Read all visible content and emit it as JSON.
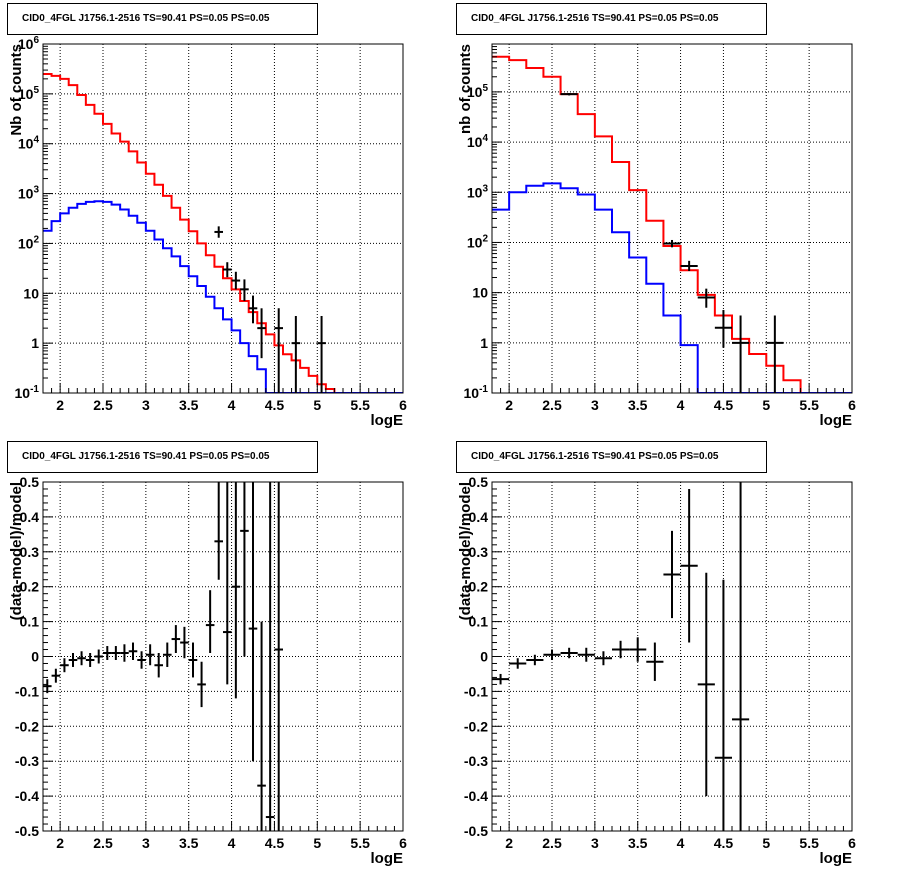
{
  "chart_data": [
    {
      "type": "histogram",
      "title": "CID0_4FGL J1756.1-2516 TS=90.41 PS=0.05 PS=0.05",
      "xlabel": "logE",
      "ylabel": "Nb of counts",
      "xlim": [
        1.8,
        6.0
      ],
      "ylim": [
        0.1,
        1000000
      ],
      "ylog": true,
      "grid": true,
      "xticks": [
        "2",
        "2.5",
        "3",
        "3.5",
        "4",
        "4.5",
        "5",
        "5.5",
        "6"
      ],
      "yticks": [
        "10^-1",
        "1",
        "10",
        "10^2",
        "10^3",
        "10^4",
        "10^5",
        "10^6"
      ],
      "bin_edges": [
        1.8,
        1.9,
        2.0,
        2.1,
        2.2,
        2.3,
        2.4,
        2.5,
        2.6,
        2.7,
        2.8,
        2.9,
        3.0,
        3.1,
        3.2,
        3.3,
        3.4,
        3.5,
        3.6,
        3.7,
        3.8,
        3.9,
        4.0,
        4.1,
        4.2,
        4.3,
        4.4,
        4.5,
        4.6,
        4.7,
        4.8,
        4.9,
        5.0,
        5.1,
        5.2,
        5.3,
        5.4,
        5.5,
        5.6,
        5.7,
        5.8,
        5.9,
        6.0
      ],
      "series": [
        {
          "color": "#ff0000",
          "values": [
            250000,
            230000,
            200000,
            150000,
            95000,
            60000,
            40000,
            25000,
            16000,
            11000,
            7000,
            4200,
            2500,
            1500,
            900,
            520,
            300,
            175,
            100,
            58,
            34,
            20,
            12,
            7,
            4.2,
            2.5,
            1.5,
            0.9,
            0.6,
            0.45,
            0.32,
            0.22,
            0.15,
            0.12,
            0.1,
            0.1,
            0.1,
            0.1,
            0.1,
            0.1,
            0.1,
            0.1
          ]
        },
        {
          "color": "#0000ff",
          "values": [
            180,
            280,
            400,
            520,
            620,
            680,
            700,
            680,
            600,
            480,
            360,
            260,
            180,
            120,
            80,
            55,
            35,
            22,
            14,
            8.5,
            5.0,
            3.0,
            1.8,
            1.0,
            0.55,
            0.3,
            0.1,
            0.1,
            0.1,
            0.1,
            0.1,
            0.1,
            0.1,
            0.1,
            0.1,
            0.1,
            0.1,
            0.1,
            0.1,
            0.1,
            0.1,
            0.1
          ]
        }
      ],
      "points": [
        {
          "x": 3.85,
          "y": 170,
          "xerr": 0.05,
          "ylo": 130,
          "yhi": 220
        },
        {
          "x": 3.95,
          "y": 30,
          "xerr": 0.05,
          "ylo": 21,
          "yhi": 42
        },
        {
          "x": 4.05,
          "y": 18,
          "xerr": 0.05,
          "ylo": 12,
          "yhi": 27
        },
        {
          "x": 4.15,
          "y": 12,
          "xerr": 0.05,
          "ylo": 7,
          "yhi": 19
        },
        {
          "x": 4.25,
          "y": 5,
          "xerr": 0.05,
          "ylo": 2.5,
          "yhi": 9
        },
        {
          "x": 4.35,
          "y": 2,
          "xerr": 0.05,
          "ylo": 0.5,
          "yhi": 5
        },
        {
          "x": 4.55,
          "y": 2,
          "xerr": 0.05,
          "ylo": 0.1,
          "yhi": 5
        },
        {
          "x": 4.75,
          "y": 1,
          "xerr": 0.05,
          "ylo": 0.1,
          "yhi": 3.5
        },
        {
          "x": 5.05,
          "y": 1,
          "xerr": 0.05,
          "ylo": 0.1,
          "yhi": 3.5
        }
      ]
    },
    {
      "type": "histogram",
      "title": "CID0_4FGL J1756.1-2516 TS=90.41 PS=0.05 PS=0.05",
      "xlabel": "logE",
      "ylabel": "nb of counts",
      "xlim": [
        1.8,
        6.0
      ],
      "ylim": [
        0.1,
        900000
      ],
      "ylog": true,
      "grid": true,
      "xticks": [
        "2",
        "2.5",
        "3",
        "3.5",
        "4",
        "4.5",
        "5",
        "5.5",
        "6"
      ],
      "yticks": [
        "10^-1",
        "1",
        "10",
        "10^2",
        "10^3",
        "10^4",
        "10^5"
      ],
      "bin_edges": [
        1.8,
        2.0,
        2.2,
        2.4,
        2.6,
        2.8,
        3.0,
        3.2,
        3.4,
        3.6,
        3.8,
        4.0,
        4.2,
        4.4,
        4.6,
        4.8,
        5.0,
        5.2,
        5.4,
        5.6,
        5.8,
        6.0
      ],
      "series": [
        {
          "color": "#ff0000",
          "values": [
            500000,
            430000,
            300000,
            200000,
            90000,
            36000,
            13000,
            4000,
            1100,
            270,
            85,
            28,
            9,
            3.5,
            1.2,
            0.6,
            0.35,
            0.18,
            0.1,
            0.1,
            0.1
          ]
        },
        {
          "color": "#0000ff",
          "values": [
            450,
            1000,
            1350,
            1500,
            1200,
            900,
            450,
            160,
            50,
            15,
            3.5,
            0.9,
            0.1,
            0.1,
            0.1,
            0.1,
            0.1,
            0.1,
            0.1,
            0.1,
            0.1
          ]
        }
      ],
      "points": [
        {
          "x": 2.7,
          "y": 90000,
          "xerr": 0.1,
          "ylo": 85000,
          "yhi": 95000
        },
        {
          "x": 3.9,
          "y": 95,
          "xerr": 0.1,
          "ylo": 80,
          "yhi": 112
        },
        {
          "x": 4.1,
          "y": 34,
          "xerr": 0.1,
          "ylo": 27,
          "yhi": 43
        },
        {
          "x": 4.3,
          "y": 8,
          "xerr": 0.1,
          "ylo": 5,
          "yhi": 12
        },
        {
          "x": 4.5,
          "y": 2,
          "xerr": 0.1,
          "ylo": 0.8,
          "yhi": 4.5
        },
        {
          "x": 4.7,
          "y": 1,
          "xerr": 0.1,
          "ylo": 0.1,
          "yhi": 3.5
        },
        {
          "x": 5.1,
          "y": 1,
          "xerr": 0.1,
          "ylo": 0.1,
          "yhi": 3.5
        }
      ]
    },
    {
      "type": "scatter",
      "title": "CID0_4FGL J1756.1-2516 TS=90.41 PS=0.05 PS=0.05",
      "xlabel": "logE",
      "ylabel": "(data-model)/model",
      "xlim": [
        1.8,
        6.0
      ],
      "ylim": [
        -0.5,
        0.5
      ],
      "ylog": false,
      "grid": true,
      "xticks": [
        "2",
        "2.5",
        "3",
        "3.5",
        "4",
        "4.5",
        "5",
        "5.5",
        "6"
      ],
      "yticks": [
        "-0.5",
        "-0.4",
        "-0.3",
        "-0.2",
        "-0.1",
        "0",
        "0.1",
        "0.2",
        "0.3",
        "0.4",
        "0.5"
      ],
      "points": [
        {
          "x": 1.85,
          "y": -0.085,
          "xerr": 0.05,
          "ylo": -0.105,
          "yhi": -0.065
        },
        {
          "x": 1.95,
          "y": -0.055,
          "xerr": 0.05,
          "ylo": -0.075,
          "yhi": -0.035
        },
        {
          "x": 2.05,
          "y": -0.025,
          "xerr": 0.05,
          "ylo": -0.045,
          "yhi": -0.005
        },
        {
          "x": 2.15,
          "y": -0.01,
          "xerr": 0.05,
          "ylo": -0.03,
          "yhi": 0.01
        },
        {
          "x": 2.25,
          "y": -0.005,
          "xerr": 0.05,
          "ylo": -0.025,
          "yhi": 0.015
        },
        {
          "x": 2.35,
          "y": -0.01,
          "xerr": 0.05,
          "ylo": -0.03,
          "yhi": 0.01
        },
        {
          "x": 2.45,
          "y": 0.0,
          "xerr": 0.05,
          "ylo": -0.02,
          "yhi": 0.02
        },
        {
          "x": 2.55,
          "y": 0.01,
          "xerr": 0.05,
          "ylo": -0.01,
          "yhi": 0.03
        },
        {
          "x": 2.65,
          "y": 0.01,
          "xerr": 0.05,
          "ylo": -0.01,
          "yhi": 0.03
        },
        {
          "x": 2.75,
          "y": 0.01,
          "xerr": 0.05,
          "ylo": -0.015,
          "yhi": 0.035
        },
        {
          "x": 2.85,
          "y": 0.015,
          "xerr": 0.05,
          "ylo": -0.01,
          "yhi": 0.04
        },
        {
          "x": 2.95,
          "y": -0.01,
          "xerr": 0.05,
          "ylo": -0.035,
          "yhi": 0.015
        },
        {
          "x": 3.05,
          "y": 0.005,
          "xerr": 0.05,
          "ylo": -0.025,
          "yhi": 0.035
        },
        {
          "x": 3.15,
          "y": -0.025,
          "xerr": 0.05,
          "ylo": -0.06,
          "yhi": 0.01
        },
        {
          "x": 3.25,
          "y": 0.005,
          "xerr": 0.05,
          "ylo": -0.03,
          "yhi": 0.04
        },
        {
          "x": 3.35,
          "y": 0.05,
          "xerr": 0.05,
          "ylo": 0.01,
          "yhi": 0.09
        },
        {
          "x": 3.45,
          "y": 0.04,
          "xerr": 0.05,
          "ylo": -0.005,
          "yhi": 0.085
        },
        {
          "x": 3.55,
          "y": -0.01,
          "xerr": 0.05,
          "ylo": -0.06,
          "yhi": 0.04
        },
        {
          "x": 3.65,
          "y": -0.08,
          "xerr": 0.05,
          "ylo": -0.145,
          "yhi": -0.015
        },
        {
          "x": 3.75,
          "y": 0.09,
          "xerr": 0.05,
          "ylo": 0.01,
          "yhi": 0.19
        },
        {
          "x": 3.85,
          "y": 0.33,
          "xerr": 0.05,
          "ylo": 0.22,
          "yhi": 0.5
        },
        {
          "x": 3.95,
          "y": 0.07,
          "xerr": 0.05,
          "ylo": -0.08,
          "yhi": 0.5
        },
        {
          "x": 4.05,
          "y": 0.2,
          "xerr": 0.05,
          "ylo": -0.12,
          "yhi": 0.5
        },
        {
          "x": 4.15,
          "y": 0.36,
          "xerr": 0.05,
          "ylo": 0.0,
          "yhi": 0.5
        },
        {
          "x": 4.25,
          "y": 0.08,
          "xerr": 0.05,
          "ylo": -0.3,
          "yhi": 0.5
        },
        {
          "x": 4.35,
          "y": -0.37,
          "xerr": 0.05,
          "ylo": -0.5,
          "yhi": 0.1
        },
        {
          "x": 4.45,
          "y": -0.46,
          "xerr": 0.05,
          "ylo": -0.5,
          "yhi": 0.5
        },
        {
          "x": 4.55,
          "y": 0.02,
          "xerr": 0.05,
          "ylo": -0.5,
          "yhi": 0.5
        }
      ]
    },
    {
      "type": "scatter",
      "title": "CID0_4FGL J1756.1-2516 TS=90.41 PS=0.05 PS=0.05",
      "xlabel": "logE",
      "ylabel": "(data-model)/model",
      "xlim": [
        1.8,
        6.0
      ],
      "ylim": [
        -0.5,
        0.5
      ],
      "ylog": false,
      "grid": true,
      "xticks": [
        "2",
        "2.5",
        "3",
        "3.5",
        "4",
        "4.5",
        "5",
        "5.5",
        "6"
      ],
      "yticks": [
        "-0.5",
        "-0.4",
        "-0.3",
        "-0.2",
        "-0.1",
        "0",
        "0.1",
        "0.2",
        "0.3",
        "0.4",
        "0.5"
      ],
      "points": [
        {
          "x": 1.9,
          "y": -0.065,
          "xerr": 0.1,
          "ylo": -0.08,
          "yhi": -0.05
        },
        {
          "x": 2.1,
          "y": -0.02,
          "xerr": 0.1,
          "ylo": -0.035,
          "yhi": -0.005
        },
        {
          "x": 2.3,
          "y": -0.01,
          "xerr": 0.1,
          "ylo": -0.025,
          "yhi": 0.005
        },
        {
          "x": 2.5,
          "y": 0.005,
          "xerr": 0.1,
          "ylo": -0.01,
          "yhi": 0.02
        },
        {
          "x": 2.7,
          "y": 0.01,
          "xerr": 0.1,
          "ylo": -0.005,
          "yhi": 0.025
        },
        {
          "x": 2.9,
          "y": 0.005,
          "xerr": 0.1,
          "ylo": -0.015,
          "yhi": 0.025
        },
        {
          "x": 3.1,
          "y": -0.005,
          "xerr": 0.1,
          "ylo": -0.025,
          "yhi": 0.015
        },
        {
          "x": 3.3,
          "y": 0.02,
          "xerr": 0.1,
          "ylo": -0.005,
          "yhi": 0.045
        },
        {
          "x": 3.5,
          "y": 0.02,
          "xerr": 0.1,
          "ylo": -0.015,
          "yhi": 0.055
        },
        {
          "x": 3.7,
          "y": -0.015,
          "xerr": 0.1,
          "ylo": -0.07,
          "yhi": 0.04
        },
        {
          "x": 3.9,
          "y": 0.235,
          "xerr": 0.1,
          "ylo": 0.11,
          "yhi": 0.36
        },
        {
          "x": 4.1,
          "y": 0.26,
          "xerr": 0.1,
          "ylo": 0.04,
          "yhi": 0.48
        },
        {
          "x": 4.3,
          "y": -0.08,
          "xerr": 0.1,
          "ylo": -0.4,
          "yhi": 0.24
        },
        {
          "x": 4.5,
          "y": -0.29,
          "xerr": 0.1,
          "ylo": -0.5,
          "yhi": 0.22
        },
        {
          "x": 4.7,
          "y": -0.18,
          "xerr": 0.1,
          "ylo": -0.5,
          "yhi": 0.5
        }
      ]
    }
  ]
}
